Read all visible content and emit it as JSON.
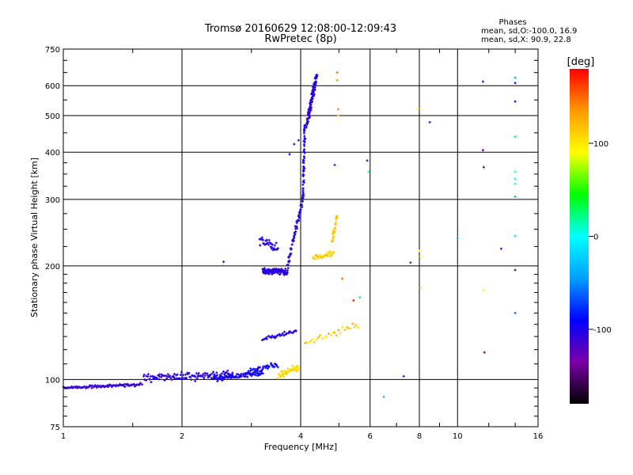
{
  "chart_data": {
    "type": "scatter",
    "title": "Tromsø 20160629 12:08:00-12:09:43",
    "subtitle": "RwPretec (8p)",
    "xlabel": "Frequency [MHz]",
    "ylabel": "Stationary phase Virtual Height [km]",
    "x_scale": "log",
    "y_scale": "log",
    "xlim": [
      1,
      16
    ],
    "ylim": [
      75,
      750
    ],
    "x_ticks": [
      1,
      2,
      4,
      6,
      8,
      10,
      16
    ],
    "x_tick_labels": [
      "1",
      "2",
      "4",
      "6",
      "8",
      "10",
      "16"
    ],
    "y_ticks": [
      75,
      100,
      200,
      300,
      400,
      500,
      600,
      750
    ],
    "y_tick_labels": [
      "75",
      "100",
      "200",
      "300",
      "400",
      "500",
      "600",
      "750"
    ],
    "grid": true,
    "legend": {
      "title": "Phases",
      "lines": [
        "mean, sd,O:-100.0, 16.9",
        "mean, sd,X: 90.9, 22.8"
      ],
      "position": "top-right"
    },
    "colorbar": {
      "label": "[deg]",
      "range": [
        -180,
        180
      ],
      "ticks": [
        100,
        0,
        -100
      ],
      "tick_labels": [
        "100",
        "0",
        "-100"
      ],
      "colors": [
        "#000000",
        "#7a00a6",
        "#0000ff",
        "#00a0ff",
        "#00ffff",
        "#00ff00",
        "#ffff00",
        "#ff9900",
        "#ff0000"
      ]
    },
    "traces": [
      {
        "f0": 1.0,
        "f1": 1.58,
        "h0": 95,
        "h1": 97,
        "n": 95,
        "hj": 0.012,
        "fj": 0.004,
        "phase": -110,
        "pj": 12
      },
      {
        "f0": 1.6,
        "f1": 2.7,
        "h0": 101,
        "h1": 103,
        "n": 120,
        "hj": 0.035,
        "fj": 0.006,
        "phase": -105,
        "pj": 18
      },
      {
        "f0": 2.4,
        "f1": 3.2,
        "h0": 100,
        "h1": 104,
        "n": 80,
        "hj": 0.022,
        "fj": 0.006,
        "phase": -100,
        "pj": 20
      },
      {
        "f0": 2.9,
        "f1": 3.5,
        "h0": 104,
        "h1": 110,
        "n": 45,
        "hj": 0.03,
        "fj": 0.006,
        "phase": -95,
        "pj": 25
      },
      {
        "f0": 3.2,
        "f1": 3.9,
        "h0": 128,
        "h1": 134,
        "n": 35,
        "hj": 0.02,
        "fj": 0.006,
        "phase": -100,
        "pj": 15
      },
      {
        "f0": 3.5,
        "f1": 3.95,
        "h0": 102,
        "h1": 108,
        "n": 45,
        "hj": 0.03,
        "fj": 0.005,
        "phase": 105,
        "pj": 30
      },
      {
        "f0": 4.1,
        "f1": 5.6,
        "h0": 125,
        "h1": 140,
        "n": 28,
        "hj": 0.025,
        "fj": 0.006,
        "phase": 110,
        "pj": 30
      },
      {
        "f0": 3.2,
        "f1": 3.7,
        "h0": 195,
        "h1": 192,
        "n": 120,
        "hj": 0.03,
        "fj": 0.006,
        "phase": -105,
        "pj": 12
      },
      {
        "f0": 3.15,
        "f1": 3.5,
        "h0": 235,
        "h1": 222,
        "n": 30,
        "hj": 0.04,
        "fj": 0.004,
        "phase": -100,
        "pj": 15
      },
      {
        "f0": 3.7,
        "f1": 4.05,
        "h0": 200,
        "h1": 300,
        "n": 70,
        "hj": 0.03,
        "fj": 0.005,
        "phase": -105,
        "pj": 12
      },
      {
        "f0": 4.05,
        "f1": 4.1,
        "h0": 300,
        "h1": 480,
        "n": 60,
        "hj": 0.04,
        "fj": 0.006,
        "phase": -100,
        "pj": 12
      },
      {
        "f0": 4.15,
        "f1": 4.4,
        "h0": 480,
        "h1": 640,
        "n": 95,
        "hj": 0.05,
        "fj": 0.007,
        "phase": -105,
        "pj": 15
      },
      {
        "f0": 4.3,
        "f1": 4.85,
        "h0": 210,
        "h1": 215,
        "n": 35,
        "hj": 0.025,
        "fj": 0.006,
        "phase": 110,
        "pj": 20
      },
      {
        "f0": 4.8,
        "f1": 4.95,
        "h0": 230,
        "h1": 270,
        "n": 25,
        "hj": 0.03,
        "fj": 0.004,
        "phase": 120,
        "pj": 20
      }
    ],
    "points": [
      {
        "x": 3.75,
        "y": 395,
        "phase": -100
      },
      {
        "x": 3.85,
        "y": 420,
        "phase": -110
      },
      {
        "x": 3.95,
        "y": 430,
        "phase": -115
      },
      {
        "x": 2.55,
        "y": 205,
        "phase": -110
      },
      {
        "x": 4.88,
        "y": 370,
        "phase": -120
      },
      {
        "x": 4.95,
        "y": 650,
        "phase": 150
      },
      {
        "x": 4.95,
        "y": 620,
        "phase": 135
      },
      {
        "x": 4.98,
        "y": 520,
        "phase": 140
      },
      {
        "x": 4.98,
        "y": 500,
        "phase": 120
      },
      {
        "x": 5.1,
        "y": 185,
        "phase": 150
      },
      {
        "x": 5.45,
        "y": 162,
        "phase": 170
      },
      {
        "x": 5.9,
        "y": 380,
        "phase": -115
      },
      {
        "x": 5.95,
        "y": 355,
        "phase": 25
      },
      {
        "x": 5.65,
        "y": 165,
        "phase": 30
      },
      {
        "x": 6.5,
        "y": 90,
        "phase": -30
      },
      {
        "x": 7.3,
        "y": 102,
        "phase": -120
      },
      {
        "x": 7.6,
        "y": 204,
        "phase": -140
      },
      {
        "x": 7.95,
        "y": 523,
        "phase": 95
      },
      {
        "x": 8.0,
        "y": 219,
        "phase": 95
      },
      {
        "x": 8.05,
        "y": 212,
        "phase": 90
      },
      {
        "x": 8.05,
        "y": 175,
        "phase": 100
      },
      {
        "x": 8.5,
        "y": 480,
        "phase": -115
      },
      {
        "x": 10.0,
        "y": 237,
        "phase": -40
      },
      {
        "x": 11.6,
        "y": 615,
        "phase": -115
      },
      {
        "x": 11.6,
        "y": 405,
        "phase": -120
      },
      {
        "x": 11.65,
        "y": 365,
        "phase": -110
      },
      {
        "x": 11.65,
        "y": 172,
        "phase": 100
      },
      {
        "x": 11.7,
        "y": 118,
        "phase": -140
      },
      {
        "x": 12.9,
        "y": 222,
        "phase": -120
      },
      {
        "x": 14.0,
        "y": 630,
        "phase": -40
      },
      {
        "x": 14.0,
        "y": 610,
        "phase": -100
      },
      {
        "x": 14.0,
        "y": 545,
        "phase": -100
      },
      {
        "x": 14.0,
        "y": 440,
        "phase": 30
      },
      {
        "x": 14.0,
        "y": 355,
        "phase": 10
      },
      {
        "x": 14.0,
        "y": 340,
        "phase": 15
      },
      {
        "x": 14.0,
        "y": 330,
        "phase": 5
      },
      {
        "x": 14.0,
        "y": 305,
        "phase": -40
      },
      {
        "x": 14.0,
        "y": 240,
        "phase": -20
      },
      {
        "x": 14.0,
        "y": 195,
        "phase": -150
      },
      {
        "x": 14.0,
        "y": 150,
        "phase": -60
      }
    ]
  }
}
